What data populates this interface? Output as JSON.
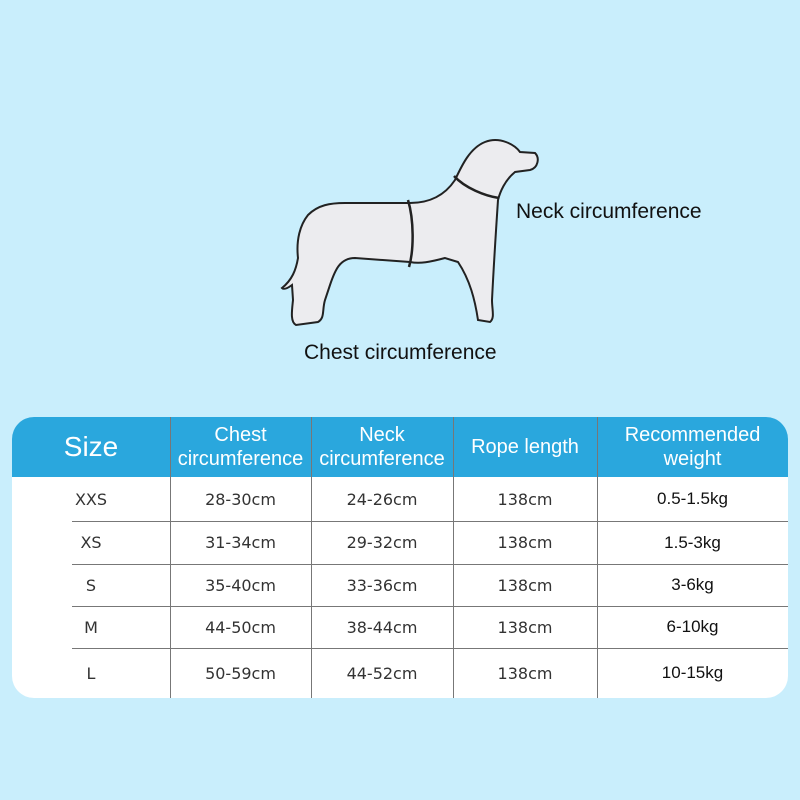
{
  "labels": {
    "neck": "Neck circumference",
    "chest": "Chest circumference"
  },
  "colors": {
    "background": "#c9eefc",
    "header": "#2aa7dd",
    "dog_fill": "#ececef"
  },
  "table": {
    "headers": [
      "Size",
      "Chest circumference",
      "Neck circumference",
      "Rope length",
      "Recommended weight"
    ],
    "rows": [
      [
        "XXS",
        "28-30cm",
        "24-26cm",
        "138cm",
        "0.5-1.5kg"
      ],
      [
        "XS",
        "31-34cm",
        "29-32cm",
        "138cm",
        "1.5-3kg"
      ],
      [
        "S",
        "35-40cm",
        "33-36cm",
        "138cm",
        "3-6kg"
      ],
      [
        "M",
        "44-50cm",
        "38-44cm",
        "138cm",
        "6-10kg"
      ],
      [
        "L",
        "50-59cm",
        "44-52cm",
        "138cm",
        "10-15kg"
      ]
    ]
  }
}
